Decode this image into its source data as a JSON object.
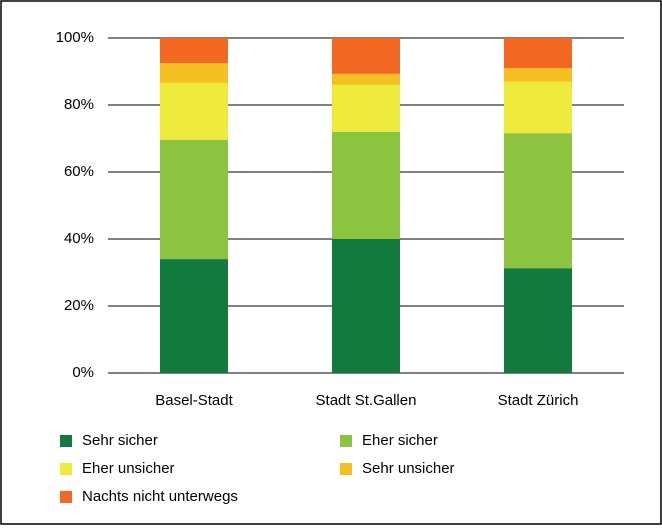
{
  "chart_data": {
    "type": "stacked_bar",
    "categories": [
      "Basel-Stadt",
      "Stadt St.Gallen",
      "Stadt Zürich"
    ],
    "series": [
      {
        "name": "Sehr sicher",
        "color": "#127a3c",
        "values": [
          34,
          40,
          31.3
        ]
      },
      {
        "name": "Eher sicher",
        "color": "#8dc43f",
        "values": [
          35.6,
          32,
          40.3
        ]
      },
      {
        "name": "Eher unsicher",
        "color": "#eeea3c",
        "values": [
          17,
          14,
          15.3
        ]
      },
      {
        "name": "Sehr unsicher",
        "color": "#f5c022",
        "values": [
          5.9,
          3.3,
          4.1
        ]
      },
      {
        "name": "Nachts nicht unterwegs",
        "color": "#f26722",
        "values": [
          7.5,
          10.7,
          9
        ]
      }
    ],
    "ylim": [
      0,
      100
    ],
    "yticks": [
      {
        "value": 0,
        "label": "0%"
      },
      {
        "value": 20,
        "label": "20%"
      },
      {
        "value": 40,
        "label": "40%"
      },
      {
        "value": 60,
        "label": "60%"
      },
      {
        "value": 80,
        "label": "80%"
      },
      {
        "value": 100,
        "label": "100%"
      }
    ],
    "grid": true,
    "legend": "bottom"
  }
}
